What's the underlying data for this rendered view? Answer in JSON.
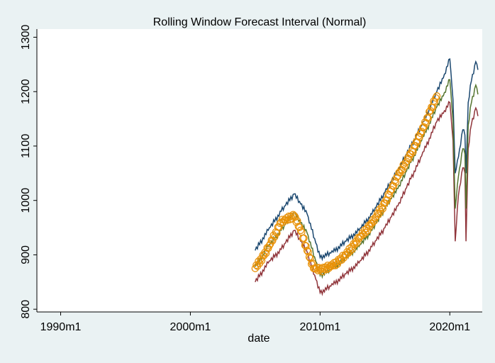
{
  "colors": {
    "background": "#eaf2f3",
    "plot_background": "#ffffff",
    "upper": "#1a476f",
    "lower": "#90353b",
    "forecast": "#55752f",
    "actual": "#e8920a"
  },
  "chart_data": {
    "type": "line",
    "title": "Rolling Window Forecast Interval (Normal)",
    "xlabel": "date",
    "ylabel": "",
    "xlim": [
      "1988m3",
      "2022m7"
    ],
    "ylim": [
      795,
      1315
    ],
    "xticks": [
      "1990m1",
      "2000m1",
      "2010m1",
      "2020m1"
    ],
    "yticks": [
      800,
      900,
      1000,
      1100,
      1200,
      1300
    ],
    "grid": false,
    "legend": "none",
    "x_anchors": [
      "2005m1",
      "2006m1",
      "2007m1",
      "2008m1",
      "2009m1",
      "2010m1",
      "2011m1",
      "2012m1",
      "2013m1",
      "2014m1",
      "2015m1",
      "2016m1",
      "2017m1",
      "2018m1",
      "2019m1",
      "2019m7",
      "2020m1",
      "2020m4",
      "2020m6",
      "2020m9",
      "2021m1",
      "2021m3",
      "2021m4",
      "2021m6",
      "2021m9",
      "2022m1",
      "2022m3"
    ],
    "series": [
      {
        "role": "upper",
        "values": [
          908,
          945,
          980,
          1012,
          975,
          895,
          905,
          925,
          945,
          975,
          1015,
          1055,
          1100,
          1145,
          1200,
          1225,
          1260,
          1185,
          1050,
          1080,
          1130,
          1120,
          1050,
          1180,
          1220,
          1255,
          1240
        ]
      },
      {
        "role": "lower",
        "values": [
          850,
          885,
          910,
          945,
          905,
          830,
          845,
          865,
          885,
          915,
          950,
          990,
          1040,
          1090,
          1145,
          1160,
          1180,
          1110,
          925,
          1010,
          1060,
          1050,
          925,
          1095,
          1140,
          1170,
          1155
        ]
      },
      {
        "role": "forecast",
        "values": [
          878,
          915,
          945,
          978,
          940,
          862,
          875,
          895,
          915,
          945,
          985,
          1022,
          1070,
          1118,
          1172,
          1192,
          1222,
          1145,
          985,
          1045,
          1095,
          1085,
          985,
          1138,
          1180,
          1212,
          1195
        ]
      }
    ],
    "actual": {
      "x_anchors": [
        "2005m1",
        "2006m1",
        "2007m1",
        "2008m1",
        "2008m7",
        "2009m1",
        "2009m7",
        "2010m1",
        "2011m1",
        "2012m1",
        "2013m1",
        "2014m1",
        "2015m1",
        "2016m1",
        "2017m1",
        "2018m1",
        "2018m7",
        "2019m1"
      ],
      "values": [
        875,
        912,
        960,
        972,
        945,
        908,
        875,
        872,
        880,
        900,
        930,
        958,
        995,
        1045,
        1085,
        1135,
        1165,
        1192
      ],
      "noise": [
        0,
        3,
        -2,
        4,
        -3,
        2,
        -4,
        3,
        -1,
        2,
        -3,
        4,
        -2,
        1
      ]
    }
  }
}
